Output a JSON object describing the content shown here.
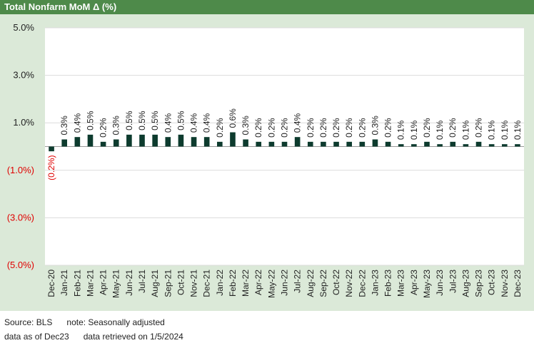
{
  "title": "Total Nonfarm MoM Δ (%)",
  "footer": {
    "source": "Source: BLS",
    "note": "note: Seasonally adjusted",
    "as_of": "data as of Dec23",
    "retrieved": "data retrieved on 1/5/2024"
  },
  "colors": {
    "title_bar": "#4e8a4a",
    "panel": "#dbe9d8",
    "bar": "#0d3b2e",
    "negative_label": "#e00000"
  },
  "chart_data": {
    "type": "bar",
    "title": "Total Nonfarm MoM Δ (%)",
    "xlabel": "",
    "ylabel": "",
    "ylim": [
      -5.0,
      5.0
    ],
    "yticks": [
      5.0,
      3.0,
      1.0,
      -1.0,
      -3.0,
      -5.0
    ],
    "ytick_labels": [
      "5.0%",
      "3.0%",
      "1.0%",
      "(1.0%)",
      "(3.0%)",
      "(5.0%)"
    ],
    "grid": true,
    "legend": "none",
    "categories": [
      "Dec-20",
      "Jan-21",
      "Feb-21",
      "Mar-21",
      "Apr-21",
      "May-21",
      "Jun-21",
      "Jul-21",
      "Aug-21",
      "Sep-21",
      "Oct-21",
      "Nov-21",
      "Dec-21",
      "Jan-22",
      "Feb-22",
      "Mar-22",
      "Apr-22",
      "May-22",
      "Jun-22",
      "Jul-22",
      "Aug-22",
      "Sep-22",
      "Oct-22",
      "Nov-22",
      "Dec-22",
      "Jan-23",
      "Feb-23",
      "Mar-23",
      "Apr-23",
      "May-23",
      "Jun-23",
      "Jul-23",
      "Aug-23",
      "Sep-23",
      "Oct-23",
      "Nov-23",
      "Dec-23"
    ],
    "values": [
      -0.2,
      0.3,
      0.4,
      0.5,
      0.2,
      0.3,
      0.5,
      0.5,
      0.5,
      0.4,
      0.5,
      0.4,
      0.4,
      0.2,
      0.6,
      0.3,
      0.2,
      0.2,
      0.2,
      0.4,
      0.2,
      0.2,
      0.2,
      0.2,
      0.2,
      0.3,
      0.2,
      0.1,
      0.1,
      0.2,
      0.1,
      0.2,
      0.1,
      0.2,
      0.1,
      0.1,
      0.1
    ],
    "data_labels": [
      "(0.2%)",
      "0.3%",
      "0.4%",
      "0.5%",
      "0.2%",
      "0.3%",
      "0.5%",
      "0.5%",
      "0.5%",
      "0.4%",
      "0.5%",
      "0.4%",
      "0.4%",
      "0.2%",
      "0.6%",
      "0.3%",
      "0.2%",
      "0.2%",
      "0.2%",
      "0.4%",
      "0.2%",
      "0.2%",
      "0.2%",
      "0.2%",
      "0.2%",
      "0.3%",
      "0.2%",
      "0.1%",
      "0.1%",
      "0.2%",
      "0.1%",
      "0.2%",
      "0.1%",
      "0.2%",
      "0.1%",
      "0.1%",
      "0.1%"
    ]
  }
}
